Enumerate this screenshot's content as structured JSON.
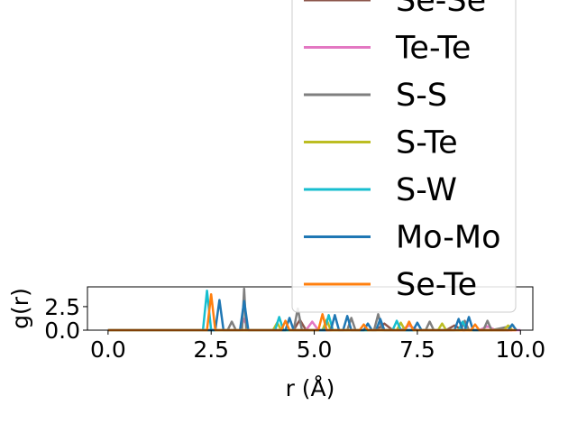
{
  "chart_data": {
    "type": "line",
    "title": "",
    "xlabel": "r (Å)",
    "ylabel": "g(r)",
    "xlim": [
      -0.5,
      10.3
    ],
    "ylim": [
      0,
      4.6
    ],
    "xticks": [
      "0.0",
      "2.5",
      "5.0",
      "7.5",
      "10.0"
    ],
    "yticks": [
      "0.0",
      "2.5"
    ],
    "legend": {
      "placement": "upper-right, overflowing above the axes"
    },
    "series": [
      {
        "name": "Se-Se",
        "color": "#8c564b",
        "x": [
          0,
          3.6,
          4.5,
          4.65,
          4.8,
          6.5,
          6.7,
          6.9,
          8.2,
          8.4,
          8.6,
          9.8
        ],
        "y": [
          0,
          0,
          0,
          1.1,
          0,
          0,
          0.7,
          0,
          0,
          0.5,
          0,
          0
        ]
      },
      {
        "name": "Te-Te",
        "color": "#e377c2",
        "x": [
          0,
          3.2,
          3.3,
          3.4,
          4.8,
          4.95,
          5.1,
          7.1,
          7.3,
          7.5,
          9.0,
          9.2,
          9.4,
          10.0
        ],
        "y": [
          0,
          0,
          1.2,
          0,
          0,
          0.9,
          0,
          0,
          0.5,
          0,
          0,
          0.4,
          0,
          0
        ]
      },
      {
        "name": "S-S",
        "color": "#7f7f7f",
        "x": [
          0,
          2.9,
          3.0,
          3.1,
          3.25,
          3.3,
          3.35,
          4.5,
          4.6,
          4.7,
          5.8,
          5.9,
          6.0,
          6.45,
          6.55,
          6.65,
          7.7,
          7.8,
          7.9,
          8.55,
          8.65,
          8.75,
          9.1,
          9.2,
          9.3,
          9.85
        ],
        "y": [
          0,
          0,
          0.9,
          0,
          0,
          4.4,
          0,
          0,
          2.3,
          0,
          0,
          1.3,
          0,
          0,
          1.7,
          0,
          0,
          0.9,
          0,
          0,
          1.0,
          0,
          0,
          1.0,
          0,
          0.5
        ]
      },
      {
        "name": "S-Te",
        "color": "#bcbd22",
        "x": [
          0,
          4.0,
          4.1,
          4.2,
          5.2,
          5.3,
          5.4,
          7.0,
          7.1,
          7.2,
          8.0,
          8.1,
          8.2,
          9.6,
          9.7,
          9.8
        ],
        "y": [
          0,
          0,
          0.8,
          0,
          0,
          1.1,
          0,
          0,
          0.8,
          0,
          0,
          0.7,
          0,
          0,
          0.5,
          0
        ]
      },
      {
        "name": "S-W",
        "color": "#17becf",
        "x": [
          0,
          2.3,
          2.4,
          2.5,
          4.05,
          4.15,
          4.25,
          5.25,
          5.35,
          5.45,
          6.9,
          7.0,
          7.1,
          8.5,
          8.6,
          8.7
        ],
        "y": [
          0,
          0,
          4.2,
          0,
          0,
          1.4,
          0,
          0,
          1.6,
          0,
          0,
          1.0,
          0,
          0,
          0.9,
          0
        ]
      },
      {
        "name": "Mo-Mo",
        "color": "#1f77b4",
        "x": [
          0,
          2.6,
          2.7,
          2.8,
          3.2,
          3.3,
          3.4,
          4.3,
          4.4,
          4.5,
          5.4,
          5.5,
          5.6,
          5.7,
          5.8,
          5.9,
          6.2,
          6.3,
          6.4,
          6.5,
          6.6,
          6.7,
          7.4,
          7.5,
          7.6,
          8.4,
          8.5,
          8.6,
          8.65,
          8.75,
          8.85,
          9.7,
          9.8,
          9.9
        ],
        "y": [
          0,
          0,
          3.2,
          0,
          0,
          3.1,
          0,
          0,
          1.3,
          0,
          0,
          1.6,
          0,
          0,
          1.5,
          0,
          0,
          0.7,
          0,
          0,
          1.2,
          0,
          0,
          0.8,
          0,
          0,
          1.2,
          0,
          0,
          1.4,
          0,
          0,
          0.6,
          0
        ]
      },
      {
        "name": "Se-Te",
        "color": "#ff7f0e",
        "x": [
          0,
          2.4,
          2.5,
          2.6,
          4.2,
          4.3,
          4.4,
          5.1,
          5.2,
          5.3,
          6.1,
          6.2,
          6.3,
          7.2,
          7.3,
          7.4,
          8.8,
          8.9,
          9.0,
          9.9
        ],
        "y": [
          0,
          0,
          3.8,
          0,
          0,
          1.0,
          0,
          0,
          1.7,
          0,
          0,
          0.6,
          0,
          0,
          0.9,
          0,
          0,
          0.6,
          0,
          0
        ]
      }
    ]
  }
}
